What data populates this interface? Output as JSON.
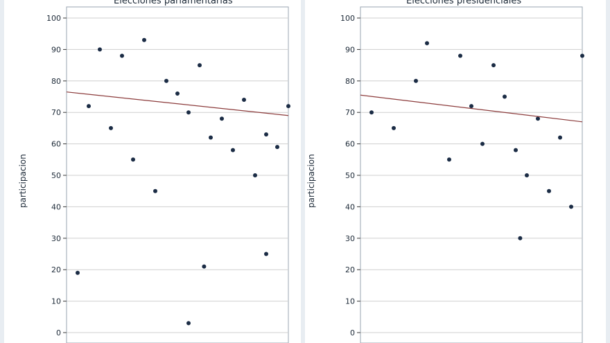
{
  "chart_data": [
    {
      "type": "scatter",
      "title": "Elecciones parlamentarias",
      "ylabel": "participacion",
      "xlabel": "",
      "ylim": [
        0,
        100
      ],
      "yticks": [
        "0",
        "10",
        "20",
        "30",
        "40",
        "50",
        "60",
        "70",
        "80",
        "90",
        "100"
      ],
      "xlim": [
        0,
        1
      ],
      "grid": true,
      "points": [
        [
          0.1,
          72
        ],
        [
          0.15,
          90
        ],
        [
          0.2,
          65
        ],
        [
          0.25,
          88
        ],
        [
          0.3,
          55
        ],
        [
          0.35,
          93
        ],
        [
          0.4,
          45
        ],
        [
          0.45,
          80
        ],
        [
          0.5,
          76
        ],
        [
          0.55,
          70
        ],
        [
          0.6,
          85
        ],
        [
          0.65,
          62
        ],
        [
          0.7,
          68
        ],
        [
          0.75,
          58
        ],
        [
          0.8,
          74
        ],
        [
          0.85,
          50
        ],
        [
          0.9,
          63
        ],
        [
          0.95,
          59
        ],
        [
          0.05,
          19
        ],
        [
          0.55,
          3
        ],
        [
          0.62,
          21
        ],
        [
          0.9,
          25
        ],
        [
          1.0,
          72
        ]
      ],
      "trend": {
        "x": [
          0,
          1
        ],
        "y": [
          76.5,
          69
        ]
      }
    },
    {
      "type": "scatter",
      "title": "Elecciones presidenciales",
      "ylabel": "participacion",
      "xlabel": "",
      "ylim": [
        0,
        100
      ],
      "yticks": [
        "0",
        "10",
        "20",
        "30",
        "40",
        "50",
        "60",
        "70",
        "80",
        "90",
        "100"
      ],
      "xlim": [
        0,
        1
      ],
      "grid": true,
      "points": [
        [
          0.05,
          70
        ],
        [
          0.15,
          65
        ],
        [
          0.25,
          80
        ],
        [
          0.3,
          92
        ],
        [
          0.4,
          55
        ],
        [
          0.45,
          88
        ],
        [
          0.5,
          72
        ],
        [
          0.55,
          60
        ],
        [
          0.6,
          85
        ],
        [
          0.65,
          75
        ],
        [
          0.7,
          58
        ],
        [
          0.72,
          30
        ],
        [
          0.75,
          50
        ],
        [
          0.8,
          68
        ],
        [
          0.85,
          45
        ],
        [
          0.9,
          62
        ],
        [
          0.95,
          40
        ],
        [
          1.0,
          88
        ]
      ],
      "trend": {
        "x": [
          0,
          1
        ],
        "y": [
          75.5,
          67
        ]
      }
    }
  ],
  "colors": {
    "point": "#1b2c45",
    "trend": "#8b3a3a",
    "grid": "#cfcfcf",
    "frame": "#e8edf2"
  }
}
